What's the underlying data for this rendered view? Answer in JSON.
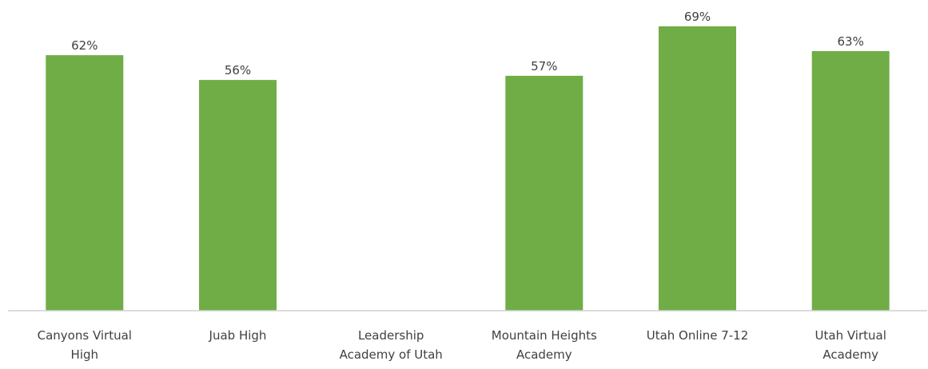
{
  "chart_data": {
    "type": "bar",
    "title": "",
    "xlabel": "",
    "ylabel": "",
    "categories": [
      [
        "Canyons Virtual",
        "High"
      ],
      [
        "Juab High"
      ],
      [
        "Leadership",
        "Academy of Utah"
      ],
      [
        "Mountain Heights",
        "Academy"
      ],
      [
        "Utah Online 7-12"
      ],
      [
        "Utah Virtual",
        "Academy"
      ]
    ],
    "values": [
      62,
      56,
      null,
      57,
      69,
      63
    ],
    "value_labels": [
      "62%",
      "56%",
      "",
      "57%",
      "69%",
      "63%"
    ],
    "ylim": [
      0,
      75
    ],
    "grid": false,
    "bar_color": "#70ad47"
  }
}
